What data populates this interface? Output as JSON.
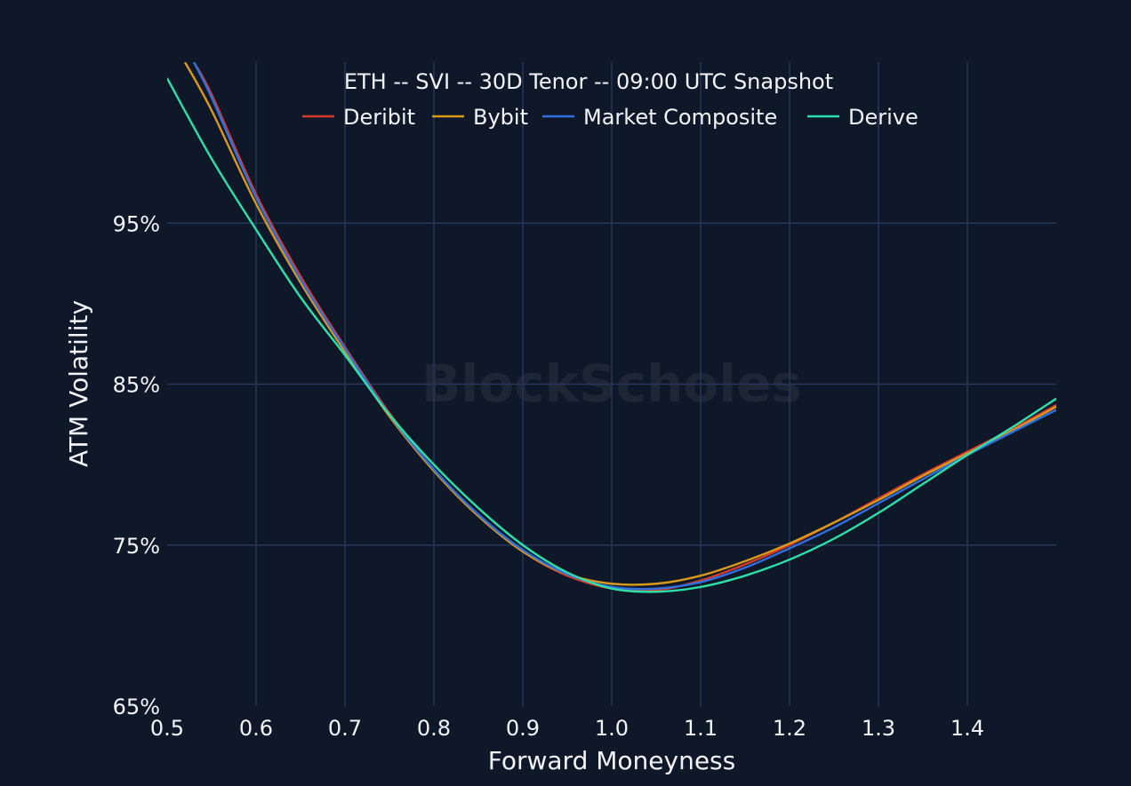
{
  "chart_data": {
    "type": "line",
    "title": "ETH -- SVI -- 30D Tenor -- 09:00 UTC Snapshot",
    "xlabel": "Forward Moneyness",
    "ylabel": "ATM Volatility",
    "watermark": "BlockScholes",
    "xlim": [
      0.5,
      1.5
    ],
    "ylim": [
      65,
      105
    ],
    "x_ticks": [
      0.5,
      0.6,
      0.7,
      0.8,
      0.9,
      1.0,
      1.1,
      1.2,
      1.3,
      1.4
    ],
    "x_tick_labels": [
      "0.5",
      "0.6",
      "0.7",
      "0.8",
      "0.9",
      "1.0",
      "1.1",
      "1.2",
      "1.3",
      "1.4"
    ],
    "y_ticks": [
      65,
      75,
      85,
      95
    ],
    "y_tick_labels": [
      "65%",
      "75%",
      "85%",
      "95%"
    ],
    "grid": true,
    "legend_position": "top",
    "series": [
      {
        "name": "Deribit",
        "color": "#d63a2a",
        "x": [
          0.53,
          0.55,
          0.6,
          0.65,
          0.7,
          0.75,
          0.8,
          0.85,
          0.9,
          0.95,
          1.0,
          1.05,
          1.1,
          1.15,
          1.2,
          1.25,
          1.3,
          1.35,
          1.4,
          1.45,
          1.5
        ],
        "y": [
          105,
          103.0,
          96.8,
          91.7,
          87.3,
          83.2,
          79.7,
          76.9,
          74.6,
          73.1,
          72.3,
          72.2,
          72.8,
          73.8,
          75.0,
          76.4,
          77.9,
          79.4,
          80.8,
          82.2,
          83.7
        ]
      },
      {
        "name": "Bybit",
        "color": "#d99a1c",
        "x": [
          0.52,
          0.55,
          0.6,
          0.65,
          0.7,
          0.75,
          0.8,
          0.85,
          0.9,
          0.95,
          1.0,
          1.05,
          1.1,
          1.15,
          1.2,
          1.25,
          1.3,
          1.35,
          1.4,
          1.45,
          1.5
        ],
        "y": [
          105,
          102.0,
          96.2,
          91.3,
          87.0,
          83.0,
          79.6,
          76.8,
          74.6,
          73.2,
          72.6,
          72.6,
          73.1,
          74.0,
          75.1,
          76.4,
          77.8,
          79.3,
          80.7,
          82.1,
          83.6
        ]
      },
      {
        "name": "Market Composite",
        "color": "#2f6fe0",
        "x": [
          0.53,
          0.55,
          0.6,
          0.65,
          0.7,
          0.75,
          0.8,
          0.85,
          0.9,
          0.95,
          1.0,
          1.05,
          1.1,
          1.15,
          1.2,
          1.25,
          1.3,
          1.35,
          1.4,
          1.45,
          1.5
        ],
        "y": [
          105,
          102.8,
          96.6,
          91.5,
          87.2,
          83.1,
          79.7,
          76.9,
          74.7,
          73.2,
          72.4,
          72.3,
          72.7,
          73.6,
          74.8,
          76.1,
          77.6,
          79.1,
          80.6,
          82.0,
          83.4
        ]
      },
      {
        "name": "Derive",
        "color": "#2ee0a8",
        "x": [
          0.5,
          0.55,
          0.6,
          0.65,
          0.7,
          0.75,
          0.8,
          0.85,
          0.9,
          0.95,
          1.0,
          1.05,
          1.1,
          1.15,
          1.2,
          1.25,
          1.3,
          1.35,
          1.4,
          1.45,
          1.5
        ],
        "y": [
          104.0,
          99.0,
          94.6,
          90.4,
          86.8,
          83.1,
          80.0,
          77.3,
          75.0,
          73.3,
          72.3,
          72.1,
          72.4,
          73.1,
          74.1,
          75.4,
          77.0,
          78.8,
          80.6,
          82.3,
          84.1
        ]
      }
    ]
  }
}
